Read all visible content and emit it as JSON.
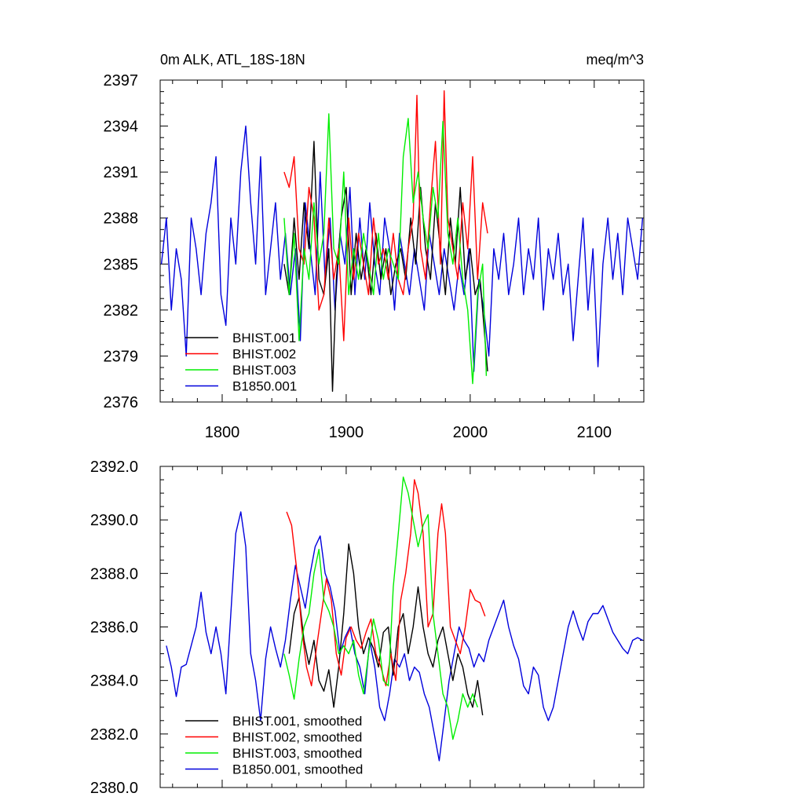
{
  "colors": {
    "BHIST.001": "#000000",
    "BHIST.002": "#ff0000",
    "BHIST.003": "#00ee00",
    "B1850.001": "#0000dd"
  },
  "chart_data": [
    {
      "type": "line",
      "title": "0m ALK, ATL_18S-18N",
      "units": "meq/m^3",
      "xlim": [
        1750,
        2140
      ],
      "ylim": [
        2376,
        2397
      ],
      "xticks": [
        1800,
        1900,
        2000,
        2100
      ],
      "xtick_labels": [
        "1800",
        "1900",
        "2000",
        "2100"
      ],
      "yticks": [
        2376,
        2379,
        2382,
        2385,
        2388,
        2391,
        2394,
        2397
      ],
      "ytick_labels": [
        "2376",
        "2379",
        "2382",
        "2385",
        "2388",
        "2391",
        "2394",
        "2397"
      ],
      "legend": [
        "BHIST.001",
        "BHIST.002",
        "BHIST.003",
        "B1850.001"
      ],
      "legend_placement": "bottom-left",
      "series": [
        {
          "name": "BHIST.001",
          "color_key": "BHIST.001",
          "x": [
            1850,
            1854,
            1858,
            1862,
            1866,
            1870,
            1874,
            1878,
            1882,
            1886,
            1889,
            1892,
            1896,
            1900,
            1904,
            1908,
            1912,
            1916,
            1920,
            1924,
            1928,
            1932,
            1936,
            1940,
            1944,
            1948,
            1952,
            1956,
            1960,
            1964,
            1968,
            1972,
            1976,
            1980,
            1984,
            1988,
            1992,
            1996,
            2000,
            2004,
            2008,
            2014
          ],
          "y": [
            2385,
            2383,
            2388,
            2384,
            2389,
            2386,
            2393,
            2384,
            2383,
            2386,
            2376.7,
            2384,
            2388,
            2390,
            2383,
            2387,
            2384,
            2386,
            2383,
            2387,
            2384,
            2386,
            2383,
            2385,
            2386,
            2384,
            2388,
            2385,
            2390,
            2386,
            2384,
            2389,
            2386,
            2383,
            2388,
            2385,
            2390,
            2384,
            2386,
            2383,
            2384,
            2378
          ]
        },
        {
          "name": "BHIST.002",
          "color_key": "BHIST.002",
          "x": [
            1850,
            1854,
            1858,
            1862,
            1866,
            1870,
            1874,
            1878,
            1882,
            1886,
            1890,
            1894,
            1898,
            1902,
            1906,
            1910,
            1914,
            1918,
            1922,
            1926,
            1930,
            1934,
            1938,
            1942,
            1946,
            1950,
            1954,
            1957,
            1960,
            1964,
            1968,
            1972,
            1976,
            1979,
            1982,
            1986,
            1990,
            1994,
            1998,
            2002,
            2006,
            2010,
            2014
          ],
          "y": [
            2391,
            2390,
            2392,
            2386,
            2385,
            2390,
            2388,
            2382,
            2383,
            2388,
            2384,
            2386,
            2380,
            2388,
            2384,
            2387,
            2385,
            2383,
            2388,
            2385,
            2386,
            2384,
            2387,
            2384,
            2383,
            2386,
            2388,
            2396,
            2386,
            2384,
            2389,
            2393,
            2385,
            2396.3,
            2388,
            2386,
            2384,
            2389,
            2386,
            2392,
            2384,
            2389,
            2387
          ]
        },
        {
          "name": "BHIST.003",
          "color_key": "BHIST.003",
          "x": [
            1850,
            1854,
            1858,
            1862,
            1866,
            1870,
            1874,
            1878,
            1882,
            1886,
            1890,
            1894,
            1898,
            1902,
            1906,
            1910,
            1914,
            1918,
            1922,
            1926,
            1930,
            1934,
            1938,
            1942,
            1946,
            1950,
            1954,
            1958,
            1962,
            1966,
            1970,
            1974,
            1978,
            1982,
            1986,
            1990,
            1994,
            1998,
            2002,
            2006,
            2010,
            2013
          ],
          "y": [
            2388,
            2383,
            2387,
            2380,
            2386,
            2384,
            2389,
            2385,
            2387,
            2394.8,
            2386,
            2385,
            2391,
            2383,
            2386,
            2384,
            2387,
            2385,
            2383,
            2387,
            2384,
            2386,
            2385,
            2384,
            2392,
            2394.5,
            2389,
            2391,
            2388,
            2386,
            2390,
            2388,
            2394.3,
            2387,
            2385,
            2388,
            2384,
            2382,
            2377.2,
            2383,
            2385,
            2377.7
          ]
        },
        {
          "name": "B1850.001",
          "color_key": "B1850.001",
          "x": [
            1751,
            1755,
            1759,
            1763,
            1767,
            1771,
            1775,
            1779,
            1783,
            1787,
            1791,
            1795,
            1799,
            1803,
            1807,
            1811,
            1815,
            1819,
            1823,
            1827,
            1831,
            1835,
            1839,
            1843,
            1847,
            1851,
            1855,
            1859,
            1863,
            1867,
            1871,
            1875,
            1879,
            1883,
            1887,
            1891,
            1895,
            1899,
            1903,
            1907,
            1911,
            1915,
            1919,
            1923,
            1927,
            1931,
            1935,
            1939,
            1943,
            1947,
            1951,
            1955,
            1959,
            1963,
            1967,
            1971,
            1975,
            1979,
            1983,
            1987,
            1991,
            1995,
            1999,
            2003,
            2007,
            2011,
            2015,
            2019,
            2023,
            2027,
            2031,
            2035,
            2039,
            2043,
            2047,
            2051,
            2055,
            2059,
            2063,
            2067,
            2071,
            2075,
            2079,
            2083,
            2087,
            2091,
            2095,
            2099,
            2103,
            2107,
            2111,
            2115,
            2119,
            2123,
            2127,
            2131,
            2135,
            2139
          ],
          "y": [
            2385,
            2388,
            2382,
            2386,
            2384,
            2379,
            2388,
            2386,
            2383,
            2387,
            2389,
            2392,
            2383,
            2381,
            2388,
            2385,
            2391,
            2394,
            2389,
            2385,
            2392,
            2383,
            2386,
            2389,
            2384,
            2387,
            2383,
            2386,
            2380,
            2389,
            2386,
            2383,
            2391,
            2384,
            2388,
            2382,
            2387,
            2385,
            2390,
            2383,
            2388,
            2384,
            2389,
            2385,
            2383,
            2388,
            2386,
            2382,
            2387,
            2385,
            2383,
            2386,
            2384,
            2382,
            2387,
            2385,
            2383,
            2386,
            2384,
            2382,
            2385,
            2383,
            2386,
            2378,
            2384,
            2382,
            2379,
            2386,
            2384,
            2387,
            2383,
            2385,
            2388,
            2383,
            2386,
            2384,
            2388,
            2382,
            2386,
            2384,
            2387,
            2383,
            2385,
            2380,
            2384,
            2388,
            2382,
            2386,
            2378.3,
            2385,
            2388,
            2384,
            2387,
            2383,
            2388,
            2386,
            2384,
            2388
          ]
        }
      ]
    },
    {
      "type": "line",
      "title": "",
      "xlim": [
        1750,
        2140
      ],
      "ylim": [
        2380.0,
        2392.0
      ],
      "xticks": [
        1800,
        1900,
        2000,
        2100
      ],
      "xtick_labels": [
        "",
        "",
        "",
        ""
      ],
      "yticks": [
        2380.0,
        2382.0,
        2384.0,
        2386.0,
        2388.0,
        2390.0,
        2392.0
      ],
      "ytick_labels": [
        "2380.0",
        "2382.0",
        "2384.0",
        "2386.0",
        "2388.0",
        "2390.0",
        "2392.0"
      ],
      "legend": [
        "BHIST.001, smoothed",
        "BHIST.002, smoothed",
        "BHIST.003, smoothed",
        "B1850.001, smoothed"
      ],
      "legend_placement": "bottom-left",
      "series": [
        {
          "name": "BHIST.001, smoothed",
          "color_key": "BHIST.001",
          "x": [
            1854,
            1858,
            1862,
            1866,
            1870,
            1874,
            1878,
            1882,
            1886,
            1890,
            1894,
            1898,
            1902,
            1906,
            1910,
            1914,
            1918,
            1922,
            1926,
            1930,
            1934,
            1938,
            1942,
            1946,
            1950,
            1954,
            1958,
            1962,
            1966,
            1970,
            1974,
            1978,
            1982,
            1986,
            1990,
            1994,
            1998,
            2002,
            2006,
            2010
          ],
          "y": [
            2385.0,
            2386.5,
            2387.1,
            2385.5,
            2384.6,
            2385.5,
            2384.0,
            2383.6,
            2384.4,
            2383.0,
            2384.5,
            2386.5,
            2389.1,
            2388.0,
            2386.0,
            2385.0,
            2385.6,
            2385.2,
            2384.5,
            2385.8,
            2386.0,
            2384.2,
            2386.0,
            2386.5,
            2385.0,
            2386.0,
            2387.5,
            2386.0,
            2385.0,
            2384.5,
            2385.5,
            2386.0,
            2385.0,
            2384.0,
            2385.0,
            2384.5,
            2383.5,
            2383.0,
            2384.0,
            2382.7
          ]
        },
        {
          "name": "BHIST.002, smoothed",
          "color_key": "BHIST.002",
          "x": [
            1852,
            1856,
            1860,
            1864,
            1868,
            1872,
            1876,
            1880,
            1884,
            1888,
            1892,
            1896,
            1900,
            1904,
            1908,
            1912,
            1916,
            1920,
            1924,
            1928,
            1932,
            1936,
            1940,
            1944,
            1948,
            1952,
            1955,
            1958,
            1962,
            1966,
            1970,
            1974,
            1977,
            1980,
            1984,
            1988,
            1992,
            1996,
            2000,
            2004,
            2008,
            2012
          ],
          "y": [
            2390.3,
            2389.8,
            2388.2,
            2386.0,
            2384.5,
            2383.8,
            2385.2,
            2386.5,
            2387.8,
            2387.0,
            2385.0,
            2384.2,
            2385.6,
            2386.0,
            2385.5,
            2385.2,
            2385.8,
            2386.3,
            2385.0,
            2384.5,
            2383.8,
            2385.0,
            2384.0,
            2387.0,
            2388.0,
            2389.5,
            2391.5,
            2391.0,
            2389.5,
            2386.0,
            2386.5,
            2389.5,
            2390.6,
            2389.5,
            2386.0,
            2385.5,
            2385.0,
            2386.0,
            2387.4,
            2387.0,
            2386.9,
            2386.4
          ]
        },
        {
          "name": "BHIST.003, smoothed",
          "color_key": "BHIST.003",
          "x": [
            1850,
            1854,
            1858,
            1862,
            1866,
            1870,
            1874,
            1878,
            1882,
            1886,
            1890,
            1894,
            1898,
            1902,
            1906,
            1910,
            1914,
            1918,
            1922,
            1926,
            1930,
            1934,
            1938,
            1942,
            1946,
            1950,
            1954,
            1958,
            1962,
            1966,
            1970,
            1974,
            1978,
            1982,
            1986,
            1990,
            1994,
            1998,
            2002,
            2006
          ],
          "y": [
            2385.0,
            2384.2,
            2383.3,
            2384.8,
            2386.0,
            2386.5,
            2388.0,
            2388.9,
            2387.0,
            2386.6,
            2386.0,
            2385.0,
            2385.3,
            2385.0,
            2385.5,
            2384.2,
            2383.5,
            2385.0,
            2386.3,
            2385.5,
            2384.0,
            2383.8,
            2387.5,
            2389.5,
            2391.6,
            2391.0,
            2390.0,
            2389.0,
            2389.8,
            2390.2,
            2386.5,
            2385.0,
            2383.5,
            2383.0,
            2381.8,
            2382.5,
            2383.5,
            2383.0,
            2383.5,
            2383.0
          ]
        },
        {
          "name": "B1850.001, smoothed",
          "color_key": "B1850.001",
          "x": [
            1755,
            1759,
            1763,
            1767,
            1771,
            1775,
            1779,
            1783,
            1787,
            1791,
            1795,
            1799,
            1803,
            1807,
            1811,
            1815,
            1819,
            1823,
            1827,
            1831,
            1835,
            1839,
            1843,
            1847,
            1851,
            1855,
            1859,
            1863,
            1867,
            1871,
            1875,
            1879,
            1883,
            1887,
            1891,
            1895,
            1899,
            1903,
            1907,
            1911,
            1915,
            1919,
            1923,
            1927,
            1931,
            1935,
            1939,
            1943,
            1947,
            1951,
            1955,
            1959,
            1963,
            1967,
            1971,
            1975,
            1979,
            1983,
            1987,
            1991,
            1995,
            1999,
            2003,
            2007,
            2011,
            2015,
            2019,
            2023,
            2027,
            2031,
            2035,
            2039,
            2043,
            2047,
            2051,
            2055,
            2059,
            2063,
            2067,
            2071,
            2075,
            2079,
            2083,
            2087,
            2091,
            2095,
            2099,
            2103,
            2107,
            2111,
            2115,
            2119,
            2123,
            2127,
            2131,
            2135,
            2139
          ],
          "y": [
            2385.3,
            2384.5,
            2383.4,
            2384.5,
            2384.6,
            2385.3,
            2386.0,
            2387.3,
            2385.8,
            2385.0,
            2386.0,
            2385.0,
            2383.5,
            2386.5,
            2389.5,
            2390.3,
            2389.0,
            2385.0,
            2384.0,
            2382.5,
            2384.8,
            2386.0,
            2385.2,
            2384.5,
            2385.5,
            2387.0,
            2388.3,
            2387.5,
            2386.7,
            2388.0,
            2389.0,
            2389.4,
            2388.0,
            2387.5,
            2386.6,
            2385.0,
            2385.6,
            2386.0,
            2385.0,
            2384.5,
            2383.5,
            2385.5,
            2384.5,
            2383.0,
            2382.5,
            2383.5,
            2384.8,
            2384.5,
            2385.0,
            2384.0,
            2384.5,
            2384.3,
            2383.5,
            2383.0,
            2382.0,
            2381.0,
            2382.5,
            2384.0,
            2385.0,
            2386.0,
            2385.5,
            2385.2,
            2384.5,
            2385.0,
            2384.7,
            2385.5,
            2386.0,
            2386.5,
            2387.0,
            2386.0,
            2385.3,
            2384.8,
            2383.8,
            2383.5,
            2384.5,
            2384.2,
            2383.0,
            2382.5,
            2383.0,
            2384.0,
            2385.0,
            2386.0,
            2386.6,
            2386.0,
            2385.5,
            2386.2,
            2386.5,
            2386.5,
            2386.8,
            2386.3,
            2385.8,
            2385.5,
            2385.2,
            2385.0,
            2385.5,
            2385.6,
            2385.5
          ]
        }
      ]
    }
  ]
}
